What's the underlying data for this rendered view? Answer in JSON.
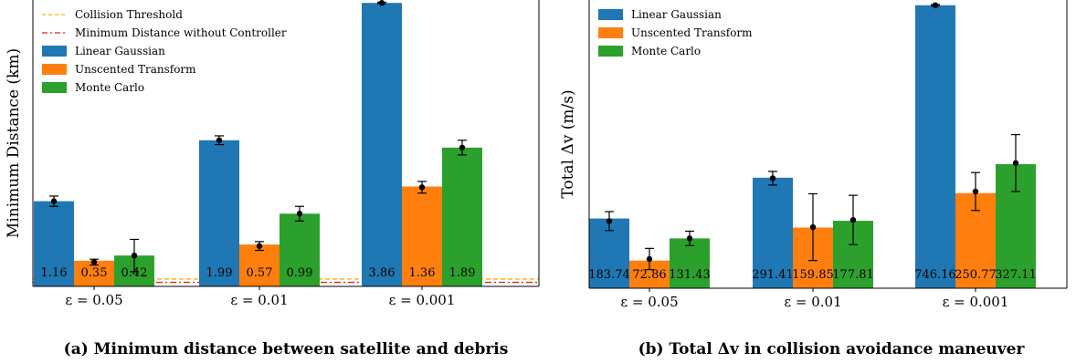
{
  "chart_data": [
    {
      "type": "bar",
      "caption": "(a) Minimum distance between satellite and debris",
      "ylabel": "Minimum Distance (km)",
      "categories": [
        "ε = 0.05",
        "ε = 0.01",
        "ε = 0.001"
      ],
      "ylim": [
        0,
        3.9
      ],
      "series": [
        {
          "name": "Linear Gaussian",
          "color": "#1f77b4",
          "values": [
            1.16,
            1.99,
            3.86
          ],
          "means": [
            1.16,
            1.99,
            3.86
          ],
          "err": [
            0.07,
            0.06,
            0.01
          ]
        },
        {
          "name": "Unscented Transform",
          "color": "#ff7f0e",
          "values": [
            0.35,
            0.57,
            1.36
          ],
          "means": [
            0.33,
            0.55,
            1.35
          ],
          "err": [
            0.04,
            0.06,
            0.08
          ]
        },
        {
          "name": "Monte Carlo",
          "color": "#2ca02c",
          "values": [
            0.42,
            0.99,
            1.89
          ],
          "means": [
            0.42,
            0.99,
            1.89
          ],
          "err": [
            0.22,
            0.1,
            0.1
          ]
        }
      ],
      "reference_lines": [
        {
          "name": "Collision Threshold",
          "value": 0.1,
          "color": "#ffb000",
          "style": "dashed"
        },
        {
          "name": "Minimum Distance without Controller",
          "value": 0.055,
          "color": "#d62728",
          "style": "dashdot"
        }
      ],
      "legend": "top-left"
    },
    {
      "type": "bar",
      "caption": "(b) Total Δv in collision avoidance maneuver",
      "ylabel": "Total Δv (m/s)",
      "categories": [
        "ε = 0.05",
        "ε = 0.01",
        "ε = 0.001"
      ],
      "ylim": [
        0,
        760
      ],
      "series": [
        {
          "name": "Linear Gaussian",
          "color": "#1f77b4",
          "values": [
            183.74,
            291.41,
            746.16
          ],
          "means": [
            177,
            290,
            746.16
          ],
          "err": [
            25,
            18,
            2
          ]
        },
        {
          "name": "Unscented Transform",
          "color": "#ff7f0e",
          "values": [
            72.86,
            159.85,
            250.77
          ],
          "means": [
            77,
            161,
            255
          ],
          "err": [
            28,
            88,
            50
          ]
        },
        {
          "name": "Monte Carlo",
          "color": "#2ca02c",
          "values": [
            131.43,
            177.81,
            327.11
          ],
          "means": [
            131.43,
            180,
            330
          ],
          "err": [
            19,
            65,
            75
          ]
        }
      ],
      "legend": "top-left"
    }
  ]
}
